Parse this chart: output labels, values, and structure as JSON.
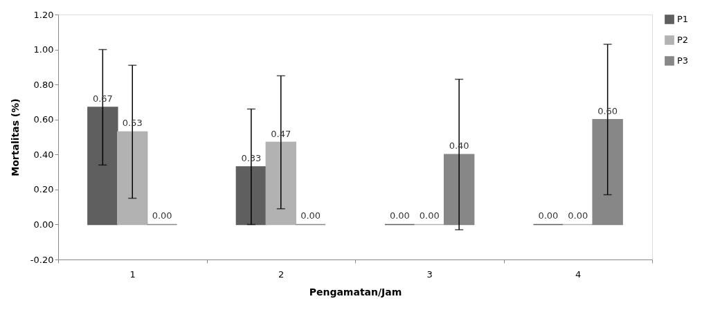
{
  "chart_data": {
    "type": "bar",
    "xlabel": "Pengamatan/Jam",
    "ylabel": "Mortalitas (%)",
    "categories": [
      "1",
      "2",
      "3",
      "4"
    ],
    "series": [
      {
        "name": "P1",
        "color": "#5f5f5f",
        "values": [
          0.67,
          0.33,
          0,
          0
        ],
        "errors": [
          0.33,
          0.33,
          null,
          null
        ],
        "value_labels": [
          "0.67",
          "0.33",
          "0.00",
          "0.00"
        ]
      },
      {
        "name": "P2",
        "color": "#b2b2b2",
        "values": [
          0.53,
          0.47,
          0,
          0
        ],
        "errors": [
          0.38,
          0.38,
          null,
          null
        ],
        "value_labels": [
          "0.53",
          "0.47",
          "0.00",
          "0.00"
        ]
      },
      {
        "name": "P3",
        "color": "#878787",
        "values": [
          0,
          0,
          0.4,
          0.6
        ],
        "errors": [
          null,
          null,
          0.43,
          0.43
        ],
        "value_labels": [
          "0.00",
          "0.00",
          "0.40",
          "0.60"
        ]
      }
    ],
    "ylim": [
      -0.2,
      1.2
    ],
    "yticks": [
      {
        "value": -0.2,
        "label": "-0.20"
      },
      {
        "value": 0,
        "label": "0.00"
      },
      {
        "value": 0.2,
        "label": "0.20"
      },
      {
        "value": 0.4,
        "label": "0.40"
      },
      {
        "value": 0.6,
        "label": "0.60"
      },
      {
        "value": 0.8,
        "label": "0.80"
      },
      {
        "value": 1.0,
        "label": "1.00"
      },
      {
        "value": 1.2,
        "label": "1.20"
      }
    ],
    "grid": false,
    "legend": "right"
  }
}
